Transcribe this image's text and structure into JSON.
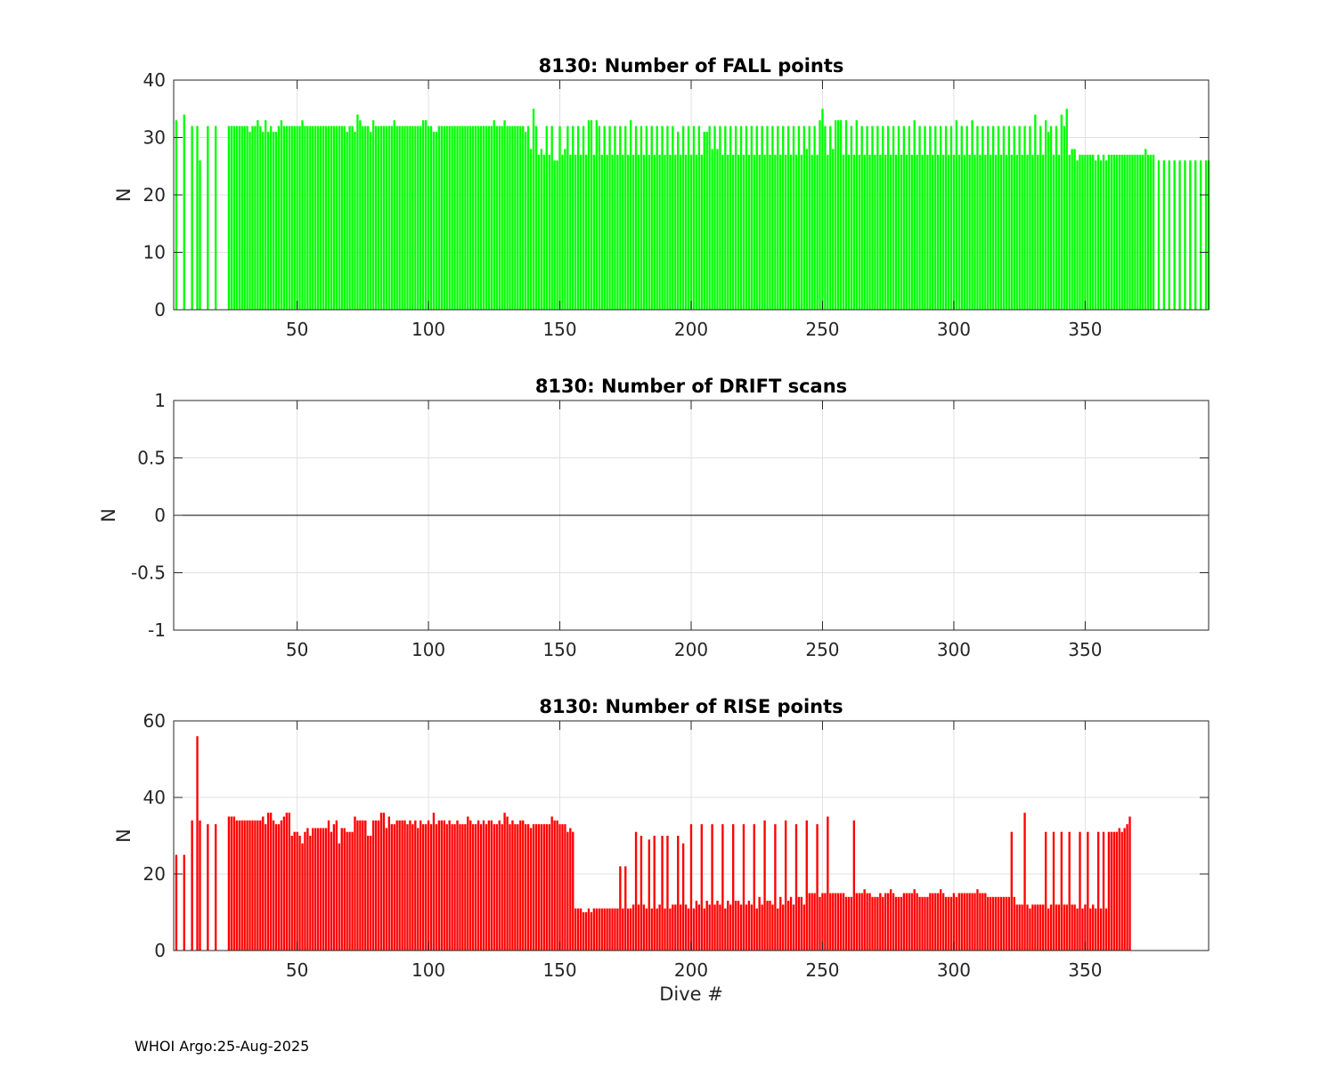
{
  "footer": "WHOI Argo:25-Aug-2025",
  "chart_data": [
    {
      "type": "bar",
      "title": "8130: Number of FALL points",
      "xlabel": "",
      "ylabel": "N",
      "xlim": [
        3,
        397
      ],
      "ylim": [
        0,
        40
      ],
      "xticks": [
        50,
        100,
        150,
        200,
        250,
        300,
        350
      ],
      "yticks": [
        0,
        10,
        20,
        30,
        40
      ],
      "ytick_labels": [
        "0",
        "10",
        "20",
        "30",
        "40"
      ],
      "grid": true,
      "color": "#00ff00",
      "series": [
        {
          "x_start": 4,
          "values": [
            33,
            0,
            0,
            34,
            0,
            0,
            32,
            0,
            32,
            26,
            0,
            0,
            32,
            0,
            0,
            32,
            0,
            0,
            0,
            0,
            32,
            32,
            32,
            32,
            32,
            32,
            32,
            32,
            31,
            32,
            32,
            33,
            32,
            31,
            33,
            31,
            32,
            31,
            31,
            32,
            33,
            32,
            32,
            32,
            32,
            32,
            32,
            32,
            33,
            32,
            32,
            32,
            32,
            32,
            32,
            32,
            32,
            32,
            32,
            32,
            32,
            32,
            32,
            32,
            32,
            31,
            32,
            32,
            31,
            34,
            33,
            32,
            32,
            32,
            31,
            33,
            32,
            32,
            32,
            32,
            32,
            32,
            32,
            33,
            32,
            32,
            32,
            32,
            32,
            32,
            32,
            32,
            32,
            32,
            33,
            33,
            32,
            32,
            31,
            31,
            32,
            32,
            32,
            32,
            32,
            32,
            32,
            32,
            32,
            32,
            32,
            32,
            32,
            32,
            32,
            32,
            32,
            32,
            32,
            32,
            32,
            33,
            32,
            32,
            32,
            33,
            32,
            32,
            32,
            32,
            32,
            32,
            32,
            31,
            32,
            28,
            35,
            32,
            27,
            28,
            27,
            32,
            27,
            32,
            26,
            26,
            32,
            27,
            28,
            32,
            27,
            32,
            27,
            32,
            27,
            32,
            27,
            33,
            33,
            27,
            33,
            32,
            27,
            32,
            27,
            32,
            27,
            32,
            27,
            32,
            27,
            32,
            27,
            33,
            27,
            32,
            27,
            32,
            27,
            32,
            27,
            32,
            27,
            32,
            27,
            32,
            27,
            32,
            27,
            32,
            27,
            31,
            27,
            32,
            27,
            32,
            27,
            32,
            27,
            32,
            27,
            31,
            31,
            32,
            28,
            32,
            28,
            32,
            27,
            32,
            27,
            32,
            27,
            32,
            27,
            32,
            27,
            32,
            27,
            32,
            27,
            32,
            27,
            32,
            27,
            32,
            27,
            32,
            27,
            32,
            27,
            32,
            27,
            32,
            27,
            32,
            27,
            32,
            27,
            32,
            28,
            32,
            27,
            32,
            27,
            33,
            35,
            32,
            27,
            32,
            28,
            33,
            33,
            33,
            27,
            33,
            27,
            32,
            27,
            33,
            27,
            32,
            27,
            32,
            27,
            32,
            27,
            32,
            27,
            32,
            27,
            32,
            27,
            32,
            27,
            32,
            27,
            32,
            27,
            32,
            27,
            33,
            27,
            32,
            27,
            32,
            27,
            32,
            27,
            32,
            27,
            32,
            27,
            32,
            27,
            32,
            27,
            33,
            27,
            32,
            27,
            32,
            27,
            33,
            27,
            32,
            27,
            32,
            27,
            32,
            27,
            32,
            27,
            32,
            27,
            32,
            27,
            32,
            27,
            32,
            27,
            32,
            27,
            32,
            27,
            32,
            27,
            34,
            27,
            32,
            27,
            33,
            31,
            32,
            27,
            32,
            27,
            34,
            32,
            35,
            27,
            28,
            28,
            26,
            27,
            27,
            27,
            27,
            27,
            27,
            26,
            27,
            26,
            27,
            26,
            27,
            27,
            27,
            27,
            27,
            27,
            27,
            27,
            27,
            27,
            27,
            27,
            27,
            27,
            28,
            27,
            27,
            27,
            0,
            26,
            0,
            26,
            0,
            26,
            0,
            26,
            0,
            26,
            0,
            26,
            0,
            26,
            0,
            26,
            0,
            26,
            0,
            26,
            26
          ]
        }
      ]
    },
    {
      "type": "line",
      "title": "8130: Number of DRIFT scans",
      "xlabel": "",
      "ylabel": "N",
      "xlim": [
        3,
        397
      ],
      "ylim": [
        -1,
        1
      ],
      "xticks": [
        50,
        100,
        150,
        200,
        250,
        300,
        350
      ],
      "yticks": [
        -1,
        -0.5,
        0,
        0.5,
        1
      ],
      "ytick_labels": [
        "-1",
        "-0.5",
        "0",
        "0.5",
        "1"
      ],
      "grid": true,
      "color": "#000000",
      "series": [
        {
          "x": [
            3,
            397
          ],
          "values": [
            0,
            0
          ]
        }
      ]
    },
    {
      "type": "bar",
      "title": "8130: Number of RISE points",
      "xlabel": "Dive #",
      "ylabel": "N",
      "xlim": [
        3,
        397
      ],
      "ylim": [
        0,
        60
      ],
      "xticks": [
        50,
        100,
        150,
        200,
        250,
        300,
        350
      ],
      "yticks": [
        0,
        20,
        40,
        60
      ],
      "ytick_labels": [
        "0",
        "20",
        "40",
        "60"
      ],
      "grid": true,
      "color": "#ff0000",
      "series": [
        {
          "x_start": 4,
          "values": [
            25,
            0,
            0,
            25,
            0,
            0,
            34,
            0,
            56,
            34,
            0,
            0,
            33,
            0,
            0,
            33,
            0,
            0,
            0,
            0,
            35,
            35,
            35,
            34,
            34,
            34,
            34,
            34,
            34,
            34,
            34,
            34,
            34,
            35,
            33,
            36,
            36,
            34,
            33,
            33,
            34,
            35,
            36,
            36,
            30,
            31,
            31,
            30,
            28,
            31,
            32,
            30,
            32,
            32,
            32,
            32,
            32,
            32,
            34,
            31,
            33,
            34,
            28,
            32,
            32,
            31,
            31,
            31,
            35,
            34,
            34,
            34,
            34,
            30,
            30,
            34,
            34,
            34,
            36,
            36,
            32,
            35,
            33,
            33,
            34,
            34,
            34,
            34,
            33,
            34,
            33,
            34,
            32,
            34,
            33,
            33,
            34,
            33,
            36,
            33,
            34,
            34,
            34,
            33,
            34,
            33,
            33,
            34,
            33,
            33,
            33,
            35,
            34,
            33,
            33,
            34,
            33,
            34,
            33,
            34,
            34,
            33,
            33,
            34,
            33,
            36,
            35,
            33,
            34,
            33,
            33,
            34,
            34,
            33,
            33,
            32,
            33,
            33,
            33,
            33,
            33,
            33,
            33,
            35,
            34,
            34,
            33,
            33,
            33,
            31,
            32,
            31,
            11,
            11,
            11,
            10,
            10,
            11,
            10,
            11,
            11,
            11,
            11,
            11,
            11,
            11,
            11,
            11,
            11,
            22,
            11,
            22,
            11,
            11,
            12,
            31,
            12,
            30,
            12,
            11,
            29,
            11,
            30,
            11,
            12,
            30,
            11,
            30,
            11,
            12,
            12,
            30,
            12,
            28,
            12,
            11,
            33,
            11,
            13,
            12,
            33,
            11,
            13,
            12,
            33,
            12,
            13,
            12,
            33,
            11,
            13,
            12,
            33,
            13,
            13,
            12,
            33,
            12,
            13,
            12,
            33,
            11,
            14,
            12,
            34,
            13,
            13,
            12,
            33,
            11,
            14,
            12,
            34,
            13,
            14,
            12,
            33,
            14,
            14,
            12,
            34,
            15,
            15,
            15,
            33,
            14,
            15,
            15,
            35,
            15,
            15,
            15,
            15,
            15,
            15,
            14,
            14,
            14,
            34,
            15,
            15,
            15,
            16,
            15,
            15,
            14,
            14,
            14,
            15,
            14,
            15,
            15,
            16,
            15,
            14,
            14,
            14,
            15,
            15,
            15,
            15,
            16,
            15,
            14,
            14,
            14,
            14,
            15,
            15,
            15,
            15,
            16,
            15,
            14,
            14,
            14,
            15,
            14,
            15,
            15,
            15,
            15,
            15,
            15,
            15,
            16,
            15,
            15,
            15,
            14,
            14,
            14,
            14,
            14,
            14,
            14,
            14,
            14,
            31,
            14,
            12,
            12,
            12,
            36,
            12,
            11,
            12,
            12,
            12,
            12,
            12,
            31,
            11,
            12,
            31,
            12,
            12,
            31,
            12,
            12,
            31,
            12,
            12,
            11,
            31,
            11,
            12,
            31,
            11,
            12,
            11,
            31,
            11,
            31,
            11,
            31,
            31,
            31,
            31,
            32,
            31,
            32,
            33,
            35
          ]
        }
      ]
    }
  ]
}
